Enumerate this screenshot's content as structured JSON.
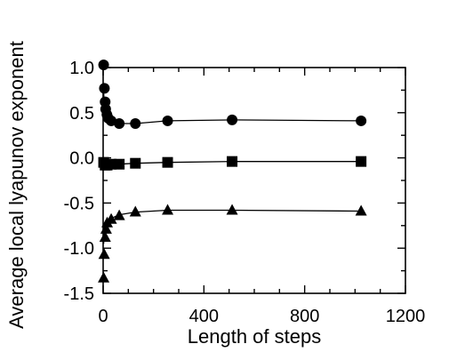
{
  "chart_data": {
    "type": "line",
    "xlabel": "Length of steps",
    "ylabel": "Average local lyapunov exponent",
    "xlim": [
      0,
      1200
    ],
    "ylim": [
      -1.5,
      1.0
    ],
    "x_ticks": [
      "0",
      "400",
      "800",
      "1200"
    ],
    "y_ticks": [
      "1.0",
      "0.5",
      "0.0",
      "-0.5",
      "-1.0",
      "-1.5"
    ],
    "grid": false,
    "series": [
      {
        "marker": "circle",
        "x": [
          2,
          5,
          8,
          10,
          15,
          20,
          32,
          64,
          128,
          256,
          512,
          1024
        ],
        "y": [
          1.03,
          0.77,
          0.62,
          0.54,
          0.48,
          0.44,
          0.41,
          0.38,
          0.38,
          0.41,
          0.42,
          0.41
        ],
        "line_y": [
          0.72,
          0.58,
          0.5,
          0.46,
          0.43,
          0.41,
          0.39,
          0.38,
          0.38,
          0.41,
          0.42,
          0.41
        ]
      },
      {
        "marker": "square",
        "x": [
          2,
          8,
          16,
          32,
          64,
          128,
          256,
          512,
          1024
        ],
        "y": [
          -0.05,
          -0.08,
          -0.08,
          -0.07,
          -0.07,
          -0.06,
          -0.05,
          -0.04,
          -0.04
        ],
        "line_y": [
          -0.06,
          -0.08,
          -0.08,
          -0.07,
          -0.07,
          -0.06,
          -0.05,
          -0.04,
          -0.04
        ]
      },
      {
        "marker": "triangle",
        "x": [
          2,
          4,
          8,
          12,
          16,
          32,
          64,
          128,
          256,
          512,
          1024
        ],
        "y": [
          -1.33,
          -1.07,
          -0.88,
          -0.79,
          -0.72,
          -0.68,
          -0.64,
          -0.6,
          -0.58,
          -0.58,
          -0.59
        ],
        "line_y": [
          -0.95,
          -0.85,
          -0.78,
          -0.74,
          -0.7,
          -0.67,
          -0.63,
          -0.6,
          -0.58,
          -0.58,
          -0.59
        ]
      }
    ]
  }
}
